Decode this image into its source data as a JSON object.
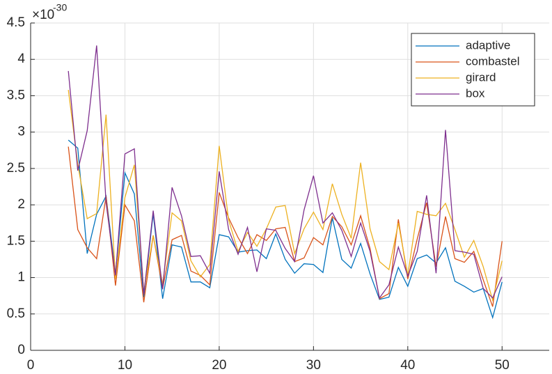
{
  "chart_data": {
    "type": "line",
    "y_multiplier": "×10",
    "y_exponent": "-30",
    "x": [
      4,
      5,
      6,
      7,
      8,
      9,
      10,
      11,
      12,
      13,
      14,
      15,
      16,
      17,
      18,
      19,
      20,
      21,
      22,
      23,
      24,
      25,
      26,
      27,
      28,
      29,
      30,
      31,
      32,
      33,
      34,
      35,
      36,
      37,
      38,
      39,
      40,
      41,
      42,
      43,
      44,
      45,
      46,
      47,
      48,
      49,
      50
    ],
    "series": [
      {
        "name": "adaptive",
        "color": "#0072BD",
        "values": [
          2.89,
          2.78,
          1.33,
          1.87,
          2.12,
          1.05,
          2.44,
          2.15,
          0.73,
          1.88,
          0.71,
          1.45,
          1.42,
          0.94,
          0.94,
          0.86,
          1.59,
          1.56,
          1.35,
          1.37,
          1.38,
          1.26,
          1.6,
          1.25,
          1.06,
          1.19,
          1.18,
          1.07,
          1.82,
          1.25,
          1.13,
          1.47,
          1.05,
          0.7,
          0.73,
          1.14,
          0.88,
          1.26,
          1.31,
          1.2,
          1.41,
          0.95,
          0.88,
          0.8,
          0.85,
          0.45,
          0.94
        ]
      },
      {
        "name": "combastel",
        "color": "#D95319",
        "values": [
          2.8,
          1.66,
          1.41,
          1.26,
          2.12,
          0.89,
          2.0,
          1.78,
          0.66,
          1.58,
          0.85,
          1.52,
          1.58,
          1.09,
          1.03,
          0.9,
          2.17,
          1.82,
          1.55,
          1.33,
          1.59,
          1.51,
          1.67,
          1.69,
          1.22,
          1.27,
          1.55,
          1.45,
          1.84,
          1.7,
          1.45,
          1.85,
          1.4,
          0.71,
          0.78,
          1.8,
          0.98,
          1.53,
          2.03,
          1.15,
          1.84,
          1.26,
          1.21,
          1.36,
          0.97,
          0.6,
          1.5
        ]
      },
      {
        "name": "girard",
        "color": "#EDB120",
        "values": [
          3.58,
          2.56,
          1.81,
          1.88,
          3.24,
          0.98,
          2.1,
          2.55,
          0.8,
          1.58,
          0.91,
          1.89,
          1.78,
          1.23,
          1.01,
          1.18,
          2.81,
          1.79,
          1.36,
          1.62,
          1.43,
          1.67,
          1.97,
          1.99,
          1.33,
          1.67,
          1.9,
          1.66,
          2.29,
          1.87,
          1.54,
          2.58,
          1.67,
          1.22,
          1.11,
          1.75,
          1.03,
          1.91,
          1.87,
          1.85,
          2.02,
          1.66,
          1.28,
          1.51,
          1.15,
          0.69,
          1.23
        ]
      },
      {
        "name": "box",
        "color": "#7E2F8E",
        "values": [
          3.84,
          2.47,
          3.02,
          4.19,
          2.03,
          1.03,
          2.7,
          2.77,
          0.77,
          1.92,
          0.84,
          2.24,
          1.85,
          1.29,
          1.3,
          1.06,
          2.46,
          1.66,
          1.32,
          1.69,
          1.08,
          1.67,
          1.65,
          1.4,
          1.22,
          1.93,
          2.4,
          1.75,
          1.89,
          1.65,
          1.29,
          1.75,
          1.36,
          0.72,
          0.9,
          1.42,
          1.02,
          1.36,
          2.13,
          1.06,
          3.03,
          1.37,
          1.35,
          1.32,
          0.85,
          0.72,
          1.01
        ]
      }
    ],
    "xlim": [
      0,
      55
    ],
    "ylim": [
      0,
      4.5
    ],
    "xticks": [
      0,
      10,
      20,
      30,
      40,
      50
    ],
    "yticks": [
      0,
      0.5,
      1,
      1.5,
      2,
      2.5,
      3,
      3.5,
      4,
      4.5
    ],
    "grid": true,
    "legend": "northeast"
  }
}
